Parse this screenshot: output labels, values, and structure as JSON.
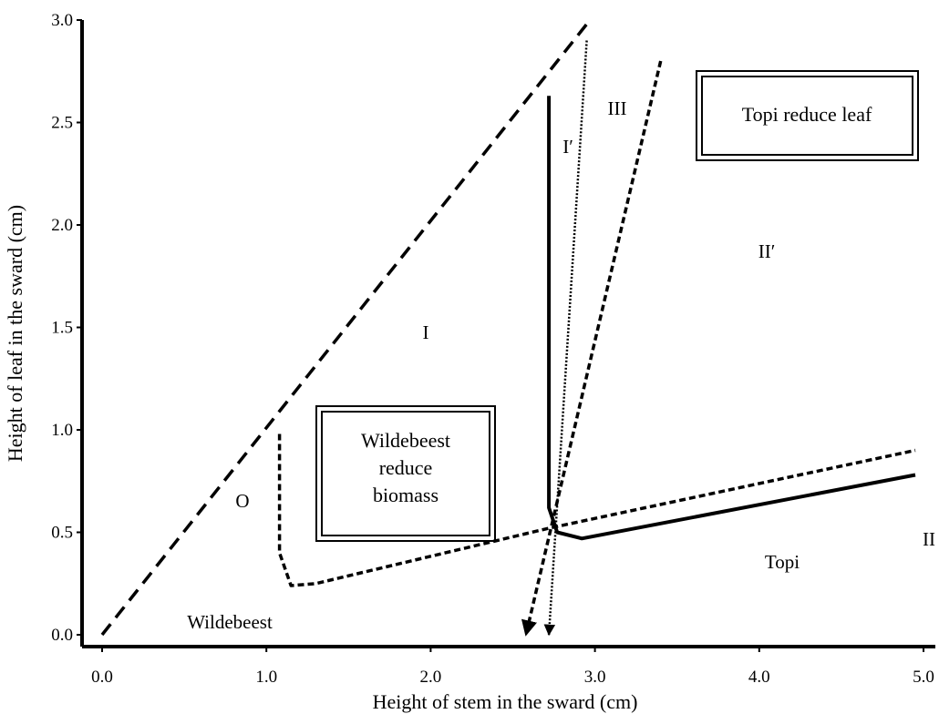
{
  "chart_data": {
    "type": "line",
    "xlabel": "Height of stem in the sward (cm)",
    "ylabel": "Height of leaf in the sward (cm)",
    "xlim": [
      0.0,
      5.0
    ],
    "ylim": [
      0.0,
      3.0
    ],
    "xticks": [
      "0.0",
      "1.0",
      "2.0",
      "3.0",
      "4.0",
      "5.0"
    ],
    "yticks": [
      "0.0",
      "0.5",
      "1.0",
      "1.5",
      "2.0",
      "2.5",
      "3.0"
    ],
    "series": [
      {
        "style": "dashed-long",
        "points": [
          [
            0.0,
            0.0
          ],
          [
            2.95,
            2.98
          ]
        ]
      },
      {
        "style": "dotted",
        "points": [
          [
            2.95,
            2.9
          ],
          [
            2.72,
            0.0
          ]
        ],
        "arrow_end": true
      },
      {
        "style": "dashed-short",
        "points": [
          [
            3.4,
            2.8
          ],
          [
            2.58,
            0.0
          ]
        ],
        "arrow_end": true
      },
      {
        "style": "dashed-short",
        "points": [
          [
            1.08,
            0.98
          ],
          [
            1.08,
            0.4
          ],
          [
            1.15,
            0.24
          ],
          [
            1.3,
            0.25
          ],
          [
            2.72,
            0.52
          ],
          [
            4.95,
            0.9
          ]
        ]
      },
      {
        "style": "solid",
        "points": [
          [
            2.72,
            2.63
          ],
          [
            2.72,
            0.62
          ],
          [
            2.77,
            0.5
          ],
          [
            2.92,
            0.47
          ],
          [
            4.95,
            0.78
          ]
        ]
      }
    ],
    "annotations": {
      "regions": [
        "I",
        "I′",
        "II",
        "II′",
        "III",
        "O"
      ],
      "species": [
        "Wildebeest",
        "Topi"
      ],
      "boxes": [
        "Topi reduce leaf",
        "Wildebeest",
        "reduce",
        "biomass"
      ]
    }
  }
}
